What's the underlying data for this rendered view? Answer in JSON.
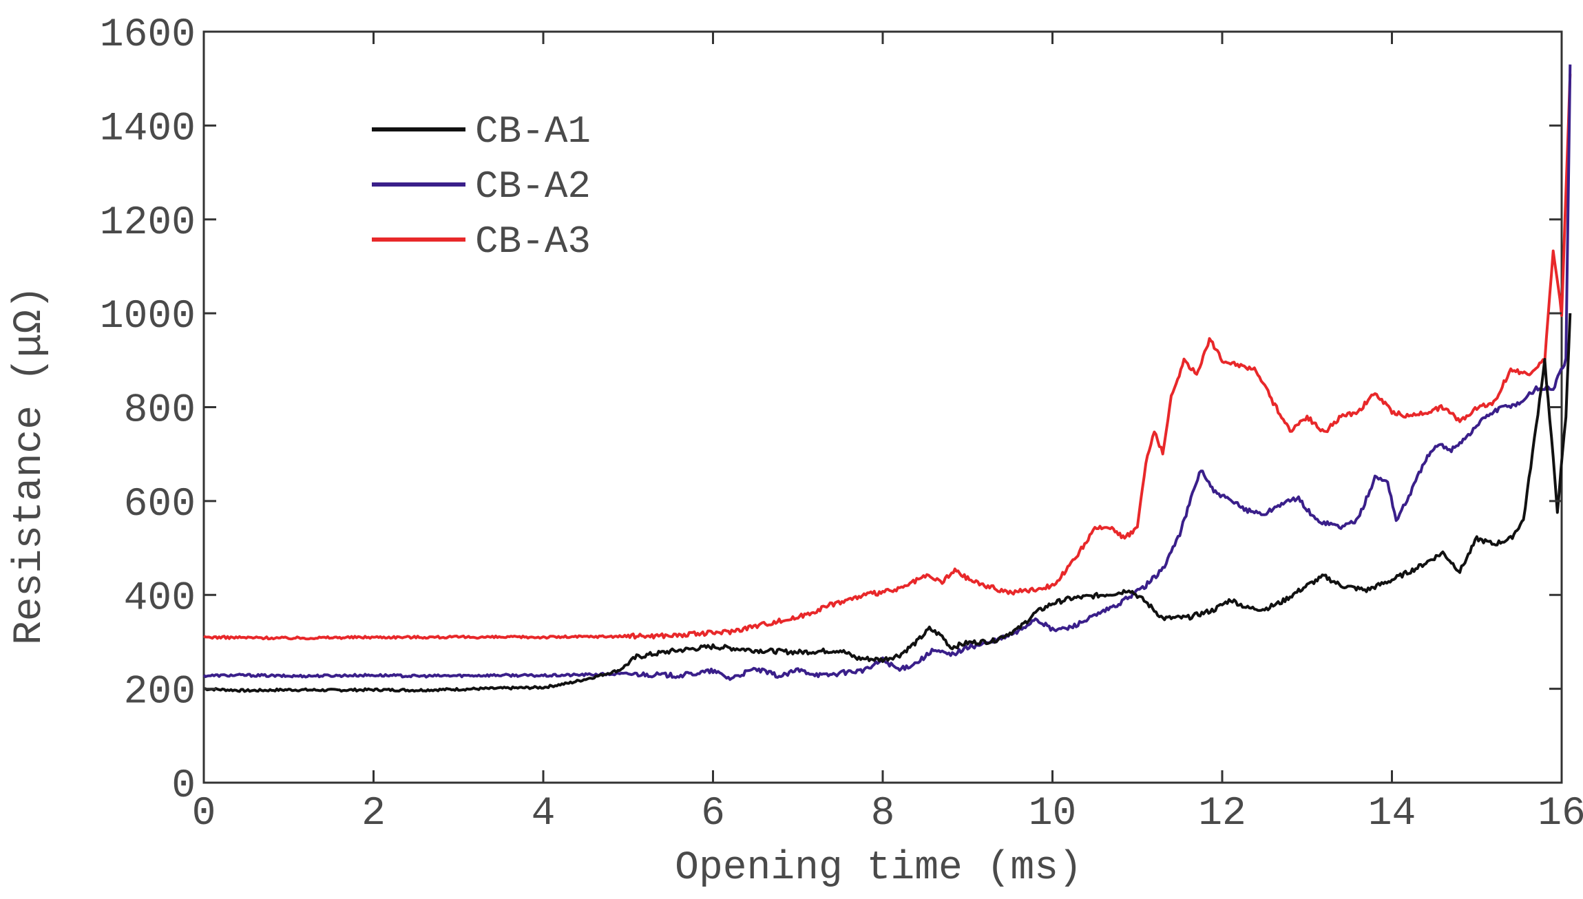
{
  "chart_data": {
    "type": "line",
    "title": "",
    "xlabel": "Opening time (ms)",
    "ylabel": "Resistance (μΩ)",
    "xlim": [
      0,
      16
    ],
    "ylim": [
      0,
      1600
    ],
    "xticks": [
      "0",
      "2",
      "4",
      "6",
      "8",
      "10",
      "12",
      "14",
      "16"
    ],
    "yticks": [
      "0",
      "200",
      "400",
      "600",
      "800",
      "1000",
      "1200",
      "1400",
      "1600"
    ],
    "grid": false,
    "legend_position": "top-left",
    "series": [
      {
        "name": "CB-A1",
        "color": "#111111",
        "points": [
          [
            0,
            200
          ],
          [
            0.5,
            196
          ],
          [
            1,
            198
          ],
          [
            1.5,
            197
          ],
          [
            2,
            198
          ],
          [
            2.5,
            197
          ],
          [
            3,
            199
          ],
          [
            3.5,
            201
          ],
          [
            4,
            203
          ],
          [
            4.3,
            212
          ],
          [
            4.6,
            225
          ],
          [
            4.9,
            240
          ],
          [
            5.1,
            268
          ],
          [
            5.5,
            280
          ],
          [
            6,
            290
          ],
          [
            6.5,
            282
          ],
          [
            7,
            278
          ],
          [
            7.5,
            282
          ],
          [
            7.7,
            265
          ],
          [
            8,
            262
          ],
          [
            8.2,
            272
          ],
          [
            8.4,
            300
          ],
          [
            8.55,
            328
          ],
          [
            8.7,
            312
          ],
          [
            8.8,
            288
          ],
          [
            9,
            298
          ],
          [
            9.3,
            302
          ],
          [
            9.6,
            328
          ],
          [
            9.8,
            362
          ],
          [
            10,
            382
          ],
          [
            10.2,
            392
          ],
          [
            10.5,
            398
          ],
          [
            10.8,
            405
          ],
          [
            10.9,
            412
          ],
          [
            11.1,
            385
          ],
          [
            11.3,
            350
          ],
          [
            11.6,
            352
          ],
          [
            11.9,
            368
          ],
          [
            12.1,
            390
          ],
          [
            12.3,
            372
          ],
          [
            12.5,
            370
          ],
          [
            12.7,
            385
          ],
          [
            13,
            420
          ],
          [
            13.2,
            440
          ],
          [
            13.4,
            420
          ],
          [
            13.7,
            410
          ],
          [
            14,
            432
          ],
          [
            14.3,
            458
          ],
          [
            14.6,
            490
          ],
          [
            14.8,
            450
          ],
          [
            15,
            520
          ],
          [
            15.2,
            508
          ],
          [
            15.4,
            520
          ],
          [
            15.55,
            560
          ],
          [
            15.7,
            760
          ],
          [
            15.8,
            900
          ],
          [
            15.9,
            690
          ],
          [
            15.95,
            580
          ],
          [
            16.05,
            780
          ],
          [
            16.1,
            1000
          ]
        ]
      },
      {
        "name": "CB-A2",
        "color": "#3a1f8a",
        "points": [
          [
            0,
            228
          ],
          [
            0.5,
            229
          ],
          [
            1,
            227
          ],
          [
            1.5,
            228
          ],
          [
            2,
            229
          ],
          [
            2.5,
            227
          ],
          [
            3,
            228
          ],
          [
            3.5,
            229
          ],
          [
            4,
            228
          ],
          [
            4.5,
            230
          ],
          [
            5,
            232
          ],
          [
            5.3,
            230
          ],
          [
            5.6,
            228
          ],
          [
            6,
            238
          ],
          [
            6.2,
            222
          ],
          [
            6.5,
            242
          ],
          [
            6.8,
            226
          ],
          [
            7,
            240
          ],
          [
            7.3,
            228
          ],
          [
            7.6,
            236
          ],
          [
            7.8,
            240
          ],
          [
            8,
            262
          ],
          [
            8.2,
            240
          ],
          [
            8.4,
            256
          ],
          [
            8.6,
            282
          ],
          [
            8.8,
            272
          ],
          [
            9,
            288
          ],
          [
            9.3,
            300
          ],
          [
            9.6,
            322
          ],
          [
            9.8,
            350
          ],
          [
            10,
            325
          ],
          [
            10.2,
            330
          ],
          [
            10.5,
            355
          ],
          [
            10.8,
            382
          ],
          [
            10.95,
            402
          ],
          [
            11.1,
            420
          ],
          [
            11.3,
            455
          ],
          [
            11.5,
            530
          ],
          [
            11.65,
            615
          ],
          [
            11.75,
            668
          ],
          [
            11.9,
            620
          ],
          [
            12.1,
            600
          ],
          [
            12.3,
            580
          ],
          [
            12.5,
            572
          ],
          [
            12.7,
            595
          ],
          [
            12.9,
            605
          ],
          [
            13.1,
            560
          ],
          [
            13.4,
            545
          ],
          [
            13.6,
            560
          ],
          [
            13.8,
            650
          ],
          [
            13.95,
            642
          ],
          [
            14.05,
            558
          ],
          [
            14.2,
            610
          ],
          [
            14.4,
            690
          ],
          [
            14.55,
            720
          ],
          [
            14.7,
            710
          ],
          [
            14.9,
            740
          ],
          [
            15.1,
            780
          ],
          [
            15.3,
            800
          ],
          [
            15.5,
            808
          ],
          [
            15.7,
            840
          ],
          [
            15.9,
            840
          ],
          [
            16.05,
            900
          ],
          [
            16.1,
            1530
          ]
        ]
      },
      {
        "name": "CB-A3",
        "color": "#e8282a",
        "points": [
          [
            0,
            310
          ],
          [
            1,
            308
          ],
          [
            2,
            310
          ],
          [
            3,
            310
          ],
          [
            4,
            310
          ],
          [
            5,
            312
          ],
          [
            5.6,
            314
          ],
          [
            6.2,
            322
          ],
          [
            6.6,
            338
          ],
          [
            7,
            352
          ],
          [
            7.4,
            380
          ],
          [
            7.8,
            400
          ],
          [
            8.2,
            412
          ],
          [
            8.5,
            440
          ],
          [
            8.7,
            428
          ],
          [
            8.85,
            452
          ],
          [
            9,
            435
          ],
          [
            9.2,
            420
          ],
          [
            9.5,
            405
          ],
          [
            9.8,
            412
          ],
          [
            10,
            420
          ],
          [
            10.2,
            460
          ],
          [
            10.5,
            540
          ],
          [
            10.7,
            545
          ],
          [
            10.85,
            520
          ],
          [
            11,
            545
          ],
          [
            11.1,
            680
          ],
          [
            11.2,
            750
          ],
          [
            11.3,
            700
          ],
          [
            11.4,
            820
          ],
          [
            11.55,
            900
          ],
          [
            11.7,
            870
          ],
          [
            11.85,
            945
          ],
          [
            12,
            900
          ],
          [
            12.2,
            890
          ],
          [
            12.4,
            880
          ],
          [
            12.6,
            810
          ],
          [
            12.8,
            750
          ],
          [
            13,
            780
          ],
          [
            13.2,
            745
          ],
          [
            13.4,
            780
          ],
          [
            13.6,
            790
          ],
          [
            13.8,
            830
          ],
          [
            14,
            790
          ],
          [
            14.2,
            780
          ],
          [
            14.4,
            790
          ],
          [
            14.6,
            800
          ],
          [
            14.8,
            770
          ],
          [
            15,
            800
          ],
          [
            15.2,
            810
          ],
          [
            15.4,
            880
          ],
          [
            15.6,
            870
          ],
          [
            15.8,
            900
          ],
          [
            15.9,
            1130
          ],
          [
            16,
            1000
          ],
          [
            16.1,
            1510
          ]
        ]
      }
    ]
  }
}
